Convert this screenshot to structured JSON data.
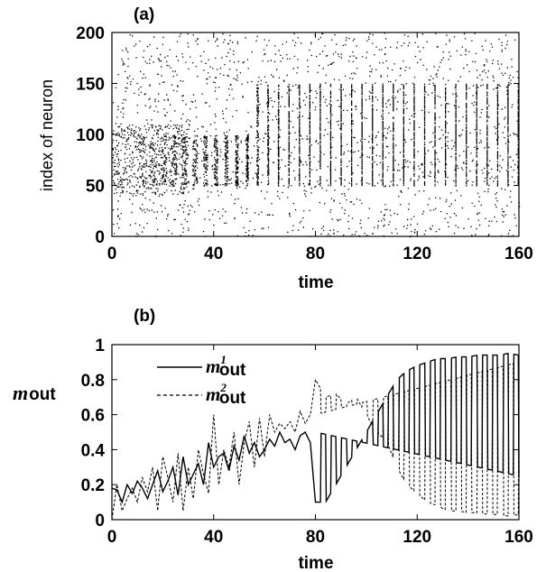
{
  "chart_data": [
    {
      "type": "scatter",
      "panel_label": "(a)",
      "xlabel": "time",
      "ylabel": "index of neuron",
      "xlim": [
        0,
        160
      ],
      "ylim": [
        0,
        200
      ],
      "x_ticks": [
        "0",
        "40",
        "80",
        "120",
        "160"
      ],
      "y_ticks": [
        "0",
        "50",
        "100",
        "150",
        "200"
      ],
      "description": "raster plot of neuron spikes; neurons 50-150 progressively synchronize into periodic bursts",
      "grid": false
    },
    {
      "type": "line",
      "panel_label": "(b)",
      "xlabel": "time",
      "ylabel": "m",
      "ylabel_sub": "out",
      "xlim": [
        0,
        160
      ],
      "ylim": [
        0,
        1
      ],
      "x_ticks": [
        "0",
        "40",
        "80",
        "120",
        "160"
      ],
      "y_ticks": [
        "0",
        "0.2",
        "0.4",
        "0.6",
        "0.8",
        "1"
      ],
      "legend_position": "top-left",
      "grid": false,
      "series": [
        {
          "name": "m",
          "name_sup": "1",
          "name_sub": "out",
          "style": "solid",
          "x": [
            0,
            2,
            4,
            6,
            8,
            10,
            12,
            14,
            16,
            18,
            20,
            22,
            24,
            26,
            28,
            30,
            32,
            34,
            36,
            38,
            40,
            42,
            44,
            46,
            48,
            50,
            52,
            54,
            56,
            58,
            60,
            62,
            64,
            66,
            68,
            70,
            72,
            74,
            76,
            78,
            80,
            84,
            88,
            92,
            96,
            100,
            104,
            108,
            112,
            116,
            120,
            124,
            128,
            132,
            136,
            140,
            144,
            148,
            152,
            156,
            160
          ],
          "values": [
            0.18,
            0.17,
            0.1,
            0.2,
            0.15,
            0.22,
            0.18,
            0.12,
            0.2,
            0.28,
            0.16,
            0.22,
            0.3,
            0.14,
            0.36,
            0.2,
            0.26,
            0.32,
            0.2,
            0.44,
            0.3,
            0.36,
            0.38,
            0.28,
            0.42,
            0.34,
            0.48,
            0.38,
            0.44,
            0.36,
            0.4,
            0.46,
            0.42,
            0.5,
            0.44,
            0.46,
            0.4,
            0.48,
            0.5,
            0.44,
            0.1,
            0.1,
            0.2,
            0.3,
            0.4,
            0.5,
            0.6,
            0.7,
            0.8,
            0.85,
            0.88,
            0.9,
            0.92,
            0.92,
            0.93,
            0.93,
            0.94,
            0.94,
            0.94,
            0.95,
            0.94
          ]
        },
        {
          "name": "m",
          "name_sup": "2",
          "name_sub": "out",
          "style": "dashed",
          "x": [
            0,
            2,
            4,
            6,
            8,
            10,
            12,
            14,
            16,
            18,
            20,
            22,
            24,
            26,
            28,
            30,
            32,
            34,
            36,
            38,
            40,
            42,
            44,
            46,
            48,
            50,
            52,
            54,
            56,
            58,
            60,
            62,
            64,
            66,
            68,
            70,
            72,
            74,
            76,
            78,
            80,
            84,
            88,
            92,
            96,
            100,
            104,
            108,
            112,
            116,
            120,
            124,
            128,
            132,
            136,
            140,
            144,
            148,
            152,
            156,
            160
          ],
          "values": [
            0.0,
            0.2,
            0.05,
            0.12,
            0.18,
            0.1,
            0.24,
            0.16,
            0.3,
            0.05,
            0.36,
            0.24,
            0.1,
            0.38,
            0.05,
            0.3,
            0.12,
            0.4,
            0.26,
            0.15,
            0.6,
            0.2,
            0.4,
            0.3,
            0.5,
            0.2,
            0.44,
            0.56,
            0.3,
            0.58,
            0.36,
            0.6,
            0.5,
            0.55,
            0.52,
            0.56,
            0.5,
            0.62,
            0.55,
            0.6,
            0.8,
            0.7,
            0.72,
            0.66,
            0.7,
            0.6,
            0.5,
            0.45,
            0.3,
            0.2,
            0.15,
            0.1,
            0.08,
            0.05,
            0.05,
            0.04,
            0.04,
            0.03,
            0.03,
            0.02,
            0.03
          ]
        }
      ]
    }
  ]
}
